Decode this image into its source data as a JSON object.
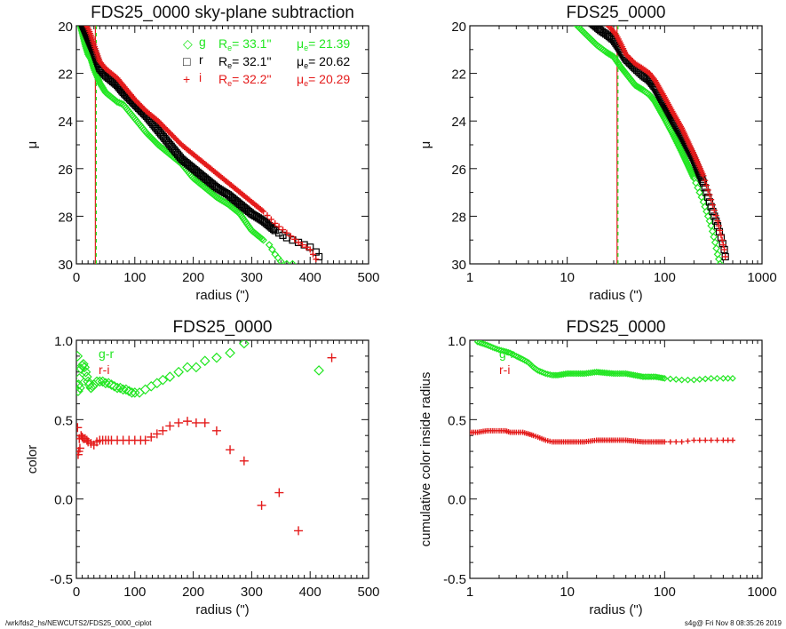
{
  "footer": {
    "left": "/wrk/fds2_hs/NEWCUTS2/FDS25_0000_ciplot",
    "right": "s4g@  Fri Nov  8 08:35:26 2019"
  },
  "colors": {
    "g": "#22e622",
    "r": "#000000",
    "i": "#e41a1a"
  },
  "chart_data": [
    {
      "id": "profile-linear",
      "type": "scatter",
      "title": "FDS25_0000 sky-plane subtraction",
      "xlabel": "radius (\")",
      "ylabel": "μ",
      "xscale": "linear",
      "xlim": [
        0,
        500
      ],
      "ylim": [
        30,
        20
      ],
      "yinverted": true,
      "xticks": [
        "0",
        "100",
        "200",
        "300",
        "400",
        "500"
      ],
      "yticks": [
        "20",
        "22",
        "24",
        "26",
        "28",
        "30"
      ],
      "vline": {
        "x": 32.5,
        "style": "dashed",
        "colors": [
          "r",
          "g"
        ]
      },
      "legend": [
        {
          "band": "g",
          "symbol": "◇",
          "re": "33.1\"",
          "mue": "21.39"
        },
        {
          "band": "r",
          "symbol": "□",
          "re": "32.1\"",
          "mue": "20.62"
        },
        {
          "band": "i",
          "symbol": "+",
          "re": "32.2\"",
          "mue": "20.29"
        }
      ],
      "legend_labels": {
        "re": "R",
        "re_sub": "e",
        "mue": "μ",
        "mue_sub": "e"
      },
      "series": [
        {
          "name": "g",
          "x": [
            5,
            10,
            15,
            20,
            25,
            30,
            40,
            50,
            60,
            70,
            80,
            100,
            120,
            140,
            160,
            180,
            200,
            220,
            240,
            260,
            280,
            300,
            310,
            320,
            330,
            340,
            350,
            360,
            370
          ],
          "y": [
            19.8,
            20.3,
            20.8,
            21.2,
            21.4,
            21.8,
            22.4,
            22.8,
            23.0,
            23.2,
            23.3,
            23.9,
            24.5,
            25.0,
            25.4,
            25.8,
            26.4,
            26.8,
            27.2,
            27.5,
            27.9,
            28.6,
            28.8,
            29.0,
            29.2,
            29.6,
            29.9,
            30.0,
            30.0
          ]
        },
        {
          "name": "r",
          "x": [
            10,
            15,
            20,
            25,
            30,
            40,
            50,
            60,
            70,
            80,
            100,
            120,
            140,
            160,
            180,
            200,
            220,
            240,
            260,
            280,
            300,
            320,
            340,
            360,
            380,
            400,
            410,
            415
          ],
          "y": [
            19.9,
            20.2,
            20.5,
            20.8,
            21.1,
            21.8,
            22.1,
            22.3,
            22.5,
            22.8,
            23.3,
            23.8,
            24.4,
            25.0,
            25.6,
            26.0,
            26.4,
            26.8,
            27.1,
            27.5,
            27.9,
            28.2,
            28.6,
            28.9,
            29.1,
            29.3,
            29.5,
            29.7
          ]
        },
        {
          "name": "i",
          "x": [
            15,
            20,
            25,
            30,
            40,
            50,
            60,
            70,
            80,
            100,
            120,
            140,
            160,
            180,
            200,
            220,
            240,
            260,
            280,
            300,
            320,
            340,
            360,
            380,
            400,
            410
          ],
          "y": [
            19.9,
            20.1,
            20.4,
            20.8,
            21.5,
            21.8,
            22.0,
            22.2,
            22.5,
            23.1,
            23.6,
            24.0,
            24.5,
            25.0,
            25.4,
            25.8,
            26.2,
            26.6,
            27.0,
            27.4,
            27.8,
            28.3,
            28.7,
            29.1,
            29.4,
            29.8
          ]
        }
      ]
    },
    {
      "id": "profile-log",
      "type": "scatter",
      "title": "FDS25_0000",
      "xlabel": "radius (\")",
      "ylabel": "μ",
      "xscale": "log",
      "xlim": [
        1,
        1000
      ],
      "ylim": [
        30,
        20
      ],
      "yinverted": true,
      "xticks": [
        "1",
        "10",
        "100",
        "1000"
      ],
      "yticks": [
        "20",
        "22",
        "24",
        "26",
        "28",
        "30"
      ],
      "vline": {
        "x": 32.5,
        "style": "dashed",
        "colors": [
          "r",
          "g"
        ]
      },
      "series": [
        {
          "name": "g",
          "x": [
            12,
            15,
            20,
            25,
            30,
            35,
            40,
            50,
            60,
            70,
            80,
            100,
            120,
            150,
            200,
            250,
            300,
            330,
            350,
            370
          ],
          "y": [
            19.9,
            20.3,
            20.8,
            21.1,
            21.3,
            21.7,
            22.0,
            22.5,
            22.7,
            22.9,
            23.2,
            23.9,
            24.5,
            25.3,
            26.4,
            27.4,
            28.4,
            29.1,
            29.6,
            30.0
          ]
        },
        {
          "name": "r",
          "x": [
            18,
            22,
            26,
            30,
            35,
            40,
            50,
            60,
            70,
            80,
            100,
            120,
            150,
            200,
            250,
            300,
            350,
            380,
            410,
            420
          ],
          "y": [
            19.9,
            20.2,
            20.4,
            20.6,
            21.0,
            21.4,
            21.8,
            22.1,
            22.3,
            22.6,
            23.3,
            23.9,
            24.6,
            25.6,
            26.6,
            27.6,
            28.4,
            28.9,
            29.4,
            29.7
          ]
        },
        {
          "name": "i",
          "x": [
            25,
            28,
            32,
            36,
            40,
            50,
            60,
            70,
            80,
            100,
            120,
            150,
            200,
            250,
            300,
            350,
            380,
            410,
            420
          ],
          "y": [
            19.9,
            20.1,
            20.4,
            20.8,
            21.2,
            21.6,
            21.8,
            22.0,
            22.3,
            23.0,
            23.6,
            24.3,
            25.4,
            26.3,
            27.3,
            28.2,
            28.8,
            29.4,
            29.7
          ]
        }
      ]
    },
    {
      "id": "color-profile",
      "type": "scatter",
      "title": "FDS25_0000",
      "xlabel": "radius (\")",
      "ylabel": "color",
      "xscale": "linear",
      "xlim": [
        0,
        500
      ],
      "ylim": [
        -0.5,
        1.0
      ],
      "xticks": [
        "0",
        "100",
        "200",
        "300",
        "400",
        "500"
      ],
      "yticks": [
        "-0.5",
        "0.0",
        "0.5",
        "1.0"
      ],
      "legend_inline": [
        {
          "label": "g-r",
          "band": "g"
        },
        {
          "label": "r-i",
          "band": "i"
        }
      ],
      "series": [
        {
          "name": "g-r",
          "marker": "diamond",
          "x": [
            2,
            3,
            4,
            5,
            6,
            8,
            10,
            12,
            14,
            16,
            18,
            20,
            22,
            25,
            28,
            30,
            35,
            40,
            45,
            50,
            55,
            60,
            65,
            70,
            75,
            80,
            85,
            90,
            95,
            100,
            108,
            118,
            128,
            138,
            148,
            160,
            175,
            190,
            205,
            220,
            240,
            263,
            287,
            415
          ],
          "y": [
            0.9,
            0.68,
            0.72,
            0.76,
            0.7,
            0.82,
            0.84,
            0.85,
            0.83,
            0.8,
            0.77,
            0.74,
            0.72,
            0.7,
            0.71,
            0.72,
            0.74,
            0.74,
            0.74,
            0.73,
            0.73,
            0.72,
            0.71,
            0.7,
            0.7,
            0.69,
            0.69,
            0.68,
            0.67,
            0.67,
            0.67,
            0.69,
            0.71,
            0.73,
            0.75,
            0.77,
            0.8,
            0.83,
            0.83,
            0.87,
            0.89,
            0.92,
            0.98,
            0.81
          ]
        },
        {
          "name": "r-i",
          "marker": "plus",
          "x": [
            2,
            3,
            4,
            5,
            6,
            8,
            10,
            12,
            15,
            18,
            20,
            25,
            30,
            35,
            40,
            45,
            50,
            55,
            60,
            70,
            80,
            90,
            100,
            110,
            118,
            128,
            138,
            148,
            160,
            175,
            190,
            205,
            220,
            240,
            263,
            287,
            317,
            347,
            380,
            437
          ],
          "y": [
            0.45,
            0.28,
            0.3,
            0.38,
            0.32,
            0.4,
            0.39,
            0.38,
            0.38,
            0.37,
            0.36,
            0.35,
            0.34,
            0.36,
            0.37,
            0.37,
            0.37,
            0.37,
            0.37,
            0.37,
            0.37,
            0.37,
            0.37,
            0.37,
            0.37,
            0.39,
            0.41,
            0.43,
            0.46,
            0.48,
            0.49,
            0.48,
            0.48,
            0.43,
            0.31,
            0.24,
            -0.04,
            0.04,
            -0.2,
            0.89
          ]
        }
      ]
    },
    {
      "id": "cumulative-color",
      "type": "scatter",
      "title": "FDS25_0000",
      "xlabel": "radius (\")",
      "ylabel": "cumulative color inside radius",
      "xscale": "log",
      "xlim": [
        1,
        1000
      ],
      "ylim": [
        -0.5,
        1.0
      ],
      "xticks": [
        "1",
        "10",
        "100",
        "1000"
      ],
      "yticks": [
        "-0.5",
        "0.0",
        "0.5",
        "1.0"
      ],
      "legend_inline": [
        {
          "label": "g-r",
          "band": "g"
        },
        {
          "label": "r-i",
          "band": "i"
        }
      ],
      "series": [
        {
          "name": "g-r",
          "marker": "diamond",
          "x": [
            1.2,
            1.5,
            1.8,
            2.0,
            2.3,
            2.6,
            3.0,
            3.5,
            4.0,
            4.5,
            5.0,
            6.0,
            7.0,
            8.0,
            10,
            15,
            20,
            30,
            40,
            60,
            80,
            100,
            150,
            200,
            300,
            400,
            500
          ],
          "y": [
            0.99,
            0.97,
            0.95,
            0.94,
            0.93,
            0.92,
            0.9,
            0.88,
            0.86,
            0.83,
            0.81,
            0.79,
            0.78,
            0.78,
            0.79,
            0.79,
            0.8,
            0.79,
            0.79,
            0.77,
            0.77,
            0.76,
            0.75,
            0.75,
            0.76,
            0.76,
            0.76
          ]
        },
        {
          "name": "r-i",
          "marker": "plus",
          "x": [
            1.0,
            1.2,
            1.5,
            1.8,
            2.0,
            2.3,
            2.6,
            3.0,
            3.5,
            4.0,
            4.5,
            5.0,
            6.0,
            7.0,
            8.0,
            10,
            15,
            20,
            30,
            40,
            60,
            80,
            100,
            150,
            200,
            300,
            400,
            500
          ],
          "y": [
            0.42,
            0.42,
            0.43,
            0.43,
            0.43,
            0.43,
            0.42,
            0.42,
            0.42,
            0.41,
            0.4,
            0.39,
            0.37,
            0.36,
            0.36,
            0.36,
            0.36,
            0.37,
            0.37,
            0.37,
            0.36,
            0.36,
            0.36,
            0.36,
            0.37,
            0.37,
            0.37,
            0.37
          ]
        }
      ]
    }
  ]
}
